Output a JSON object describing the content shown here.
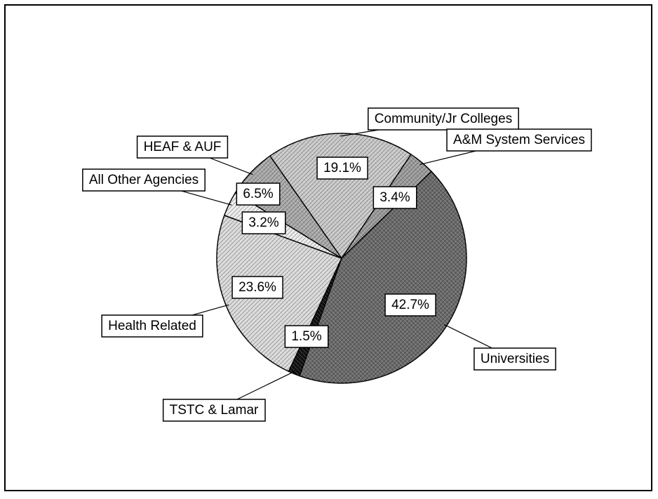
{
  "chart_data": {
    "type": "pie",
    "categories": [
      "Community/Jr Colleges",
      "A&M System Services",
      "Universities",
      "TSTC & Lamar",
      "Health Related",
      "All Other Agencies",
      "HEAF & AUF"
    ],
    "values": [
      19.1,
      3.4,
      42.7,
      1.5,
      23.6,
      3.2,
      6.5
    ],
    "value_labels": [
      "19.1%",
      "3.4%",
      "42.7%",
      "1.5%",
      "23.6%",
      "3.2%",
      "6.5%"
    ],
    "colors": [
      "#c9c9c9",
      "#9c9c9c",
      "#6a6a6a",
      "#111111",
      "#dadada",
      "#ececec",
      "#a9a9a9"
    ]
  }
}
